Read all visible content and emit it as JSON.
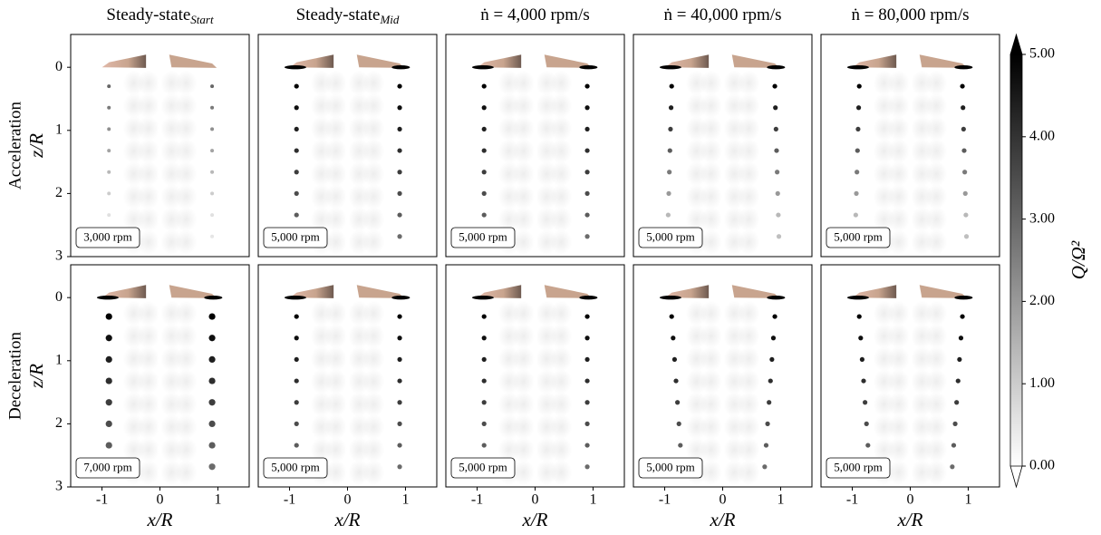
{
  "chart_data": {
    "type": "contour-grid",
    "columns": [
      {
        "title": "Steady-state",
        "subscript": "Start"
      },
      {
        "title": "Steady-state",
        "subscript": "Mid"
      },
      {
        "title": "ṅ = 4,000 rpm/s"
      },
      {
        "title": "ṅ = 40,000 rpm/s"
      },
      {
        "title": "ṅ = 80,000 rpm/s"
      }
    ],
    "rows": [
      {
        "label": "Acceleration",
        "rpm_labels": [
          "3,000 rpm",
          "5,000 rpm",
          "5,000 rpm",
          "5,000 rpm",
          "5,000 rpm"
        ]
      },
      {
        "label": "Deceleration",
        "rpm_labels": [
          "7,000 rpm",
          "5,000 rpm",
          "5,000 rpm",
          "5,000 rpm",
          "5,000 rpm"
        ]
      }
    ],
    "xlabel": "x/R",
    "ylabel": "z/R",
    "xlim": [
      -1.54,
      1.54
    ],
    "xticks": [
      -1,
      0,
      1
    ],
    "ylim": [
      3,
      -0.52
    ],
    "yticks": [
      0,
      1,
      2,
      3
    ],
    "colorbar": {
      "label": "Q/Ω²",
      "lim": [
        0,
        5
      ],
      "ticks": [
        {
          "value": 0,
          "label": "0.00"
        },
        {
          "value": 1,
          "label": "1.00"
        },
        {
          "value": 2,
          "label": "2.00"
        },
        {
          "value": 3,
          "label": "3.00"
        },
        {
          "value": 4,
          "label": "4.00"
        },
        {
          "value": 5,
          "label": "5.00"
        }
      ]
    }
  }
}
